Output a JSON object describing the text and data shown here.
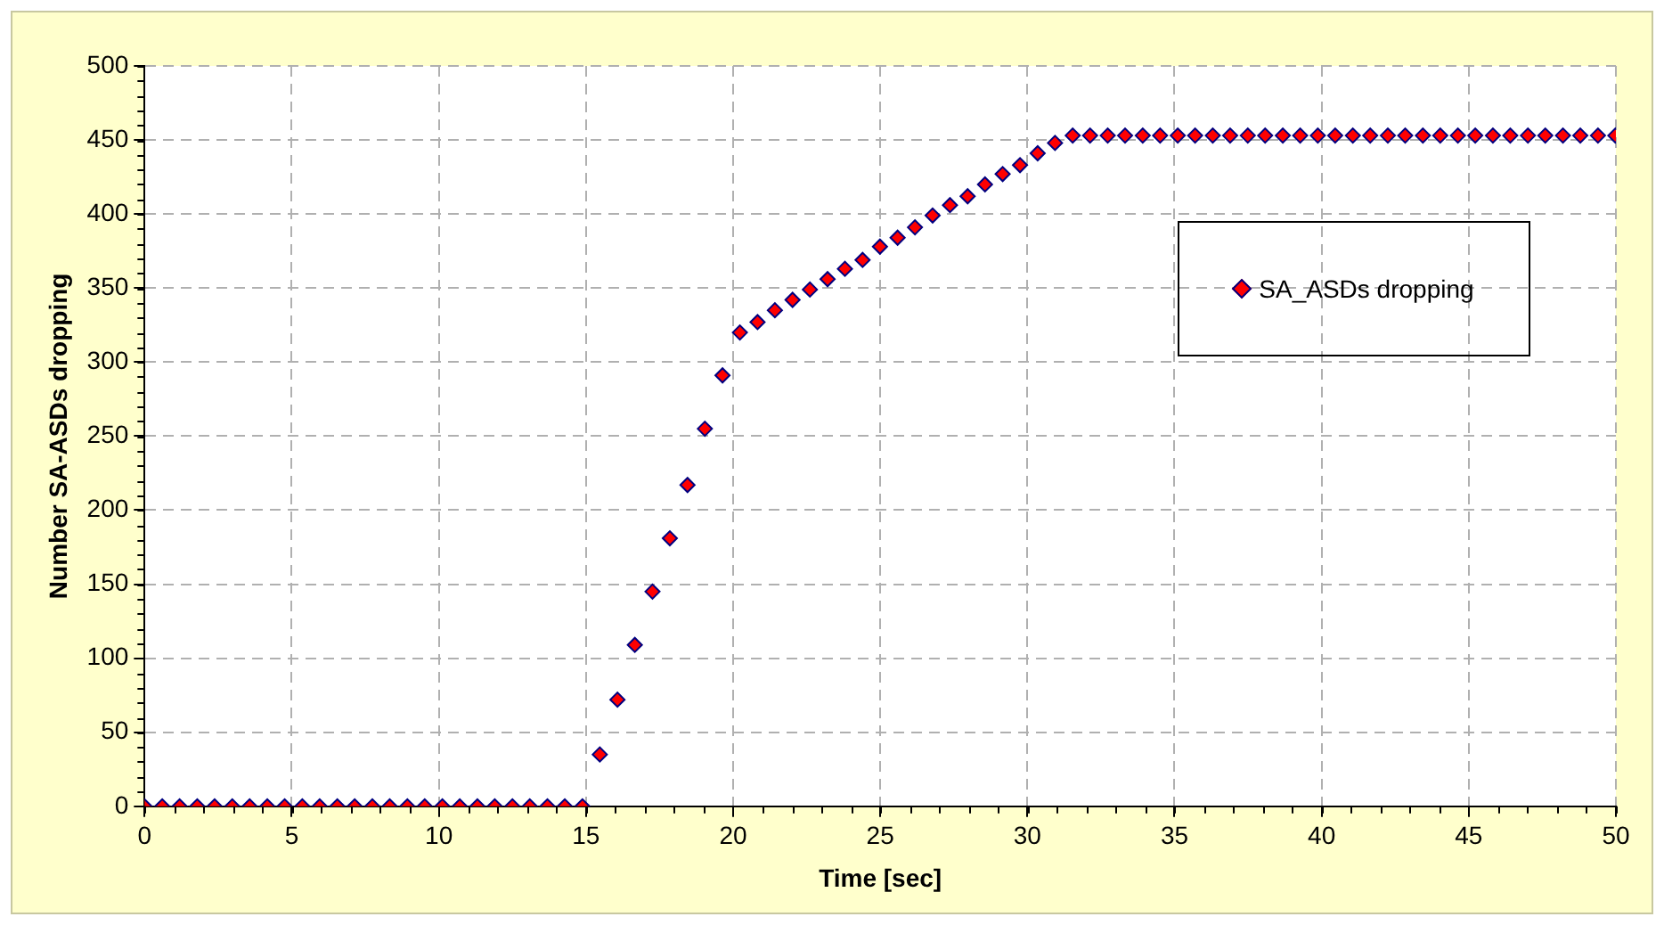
{
  "chart_data": {
    "type": "scatter",
    "xlabel": "Time [sec]",
    "ylabel": "Number SA-ASDs dropping",
    "xlim": [
      0,
      50
    ],
    "xticks": [
      0,
      5,
      10,
      15,
      20,
      25,
      30,
      35,
      40,
      45,
      50
    ],
    "ylim": [
      0,
      500
    ],
    "yticks": [
      0,
      50,
      100,
      150,
      200,
      250,
      300,
      350,
      400,
      450,
      500
    ],
    "grid": true,
    "legend": "right",
    "marker": "diamond",
    "series": [
      {
        "name": "SA_ASDs dropping",
        "color": "#ff0000",
        "x": [
          0,
          0.6,
          1.19,
          1.79,
          2.38,
          2.98,
          3.57,
          4.17,
          4.76,
          5.36,
          5.95,
          6.55,
          7.14,
          7.74,
          8.33,
          8.93,
          9.52,
          10.12,
          10.71,
          11.31,
          11.9,
          12.5,
          13.09,
          13.69,
          14.28,
          14.88,
          15.47,
          16.07,
          16.66,
          17.26,
          17.85,
          18.45,
          19.04,
          19.64,
          20.23,
          20.83,
          21.42,
          22.02,
          22.61,
          23.21,
          23.8,
          24.4,
          24.99,
          25.59,
          26.18,
          26.78,
          27.37,
          27.97,
          28.56,
          29.16,
          29.75,
          30.35,
          30.94,
          31.54,
          32.13,
          32.73,
          33.32,
          33.92,
          34.51,
          35.11,
          35.7,
          36.3,
          36.89,
          37.49,
          38.08,
          38.68,
          39.27,
          39.87,
          40.46,
          41.06,
          41.65,
          42.25,
          42.84,
          43.44,
          44.03,
          44.63,
          45.22,
          45.82,
          46.41,
          47.01,
          47.6,
          48.2,
          48.79,
          49.39,
          49.98
        ],
        "values": [
          0,
          0,
          0,
          0,
          0,
          0,
          0,
          0,
          0,
          0,
          0,
          0,
          0,
          0,
          0,
          0,
          0,
          0,
          0,
          0,
          0,
          0,
          0,
          0,
          0,
          0,
          35,
          72,
          109,
          145,
          181,
          217,
          255,
          291,
          320,
          327,
          335,
          342,
          349,
          356,
          363,
          369,
          378,
          384,
          391,
          399,
          406,
          412,
          420,
          427,
          433,
          441,
          448,
          453,
          453,
          453,
          453,
          453,
          453,
          453,
          453,
          453,
          453,
          453,
          453,
          453,
          453,
          453,
          453,
          453,
          453,
          453,
          453,
          453,
          453,
          453,
          453,
          453,
          453,
          453,
          453,
          453,
          453,
          453,
          453
        ]
      }
    ]
  }
}
